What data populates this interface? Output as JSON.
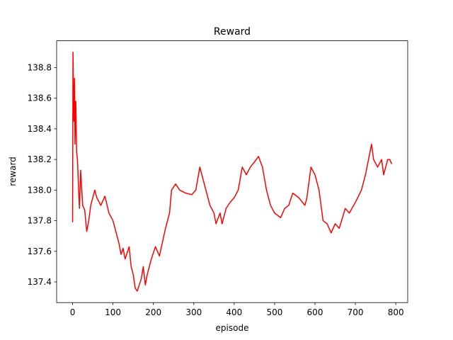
{
  "chart_data": {
    "type": "line",
    "title": "Reward",
    "x_label": "episode",
    "y_label": "reward",
    "x": [
      0,
      1,
      3,
      5,
      6,
      8,
      10,
      12,
      15,
      17,
      20,
      25,
      30,
      35,
      40,
      45,
      55,
      60,
      70,
      80,
      90,
      100,
      105,
      115,
      120,
      125,
      130,
      140,
      145,
      150,
      155,
      160,
      170,
      175,
      180,
      185,
      195,
      205,
      215,
      230,
      240,
      245,
      255,
      265,
      280,
      295,
      305,
      315,
      320,
      330,
      340,
      350,
      355,
      365,
      370,
      380,
      390,
      400,
      410,
      420,
      430,
      440,
      455,
      460,
      470,
      480,
      490,
      500,
      515,
      525,
      535,
      545,
      560,
      575,
      580,
      590,
      600,
      610,
      620,
      630,
      640,
      650,
      660,
      675,
      685,
      700,
      715,
      725,
      740,
      745,
      755,
      765,
      770,
      780,
      785,
      790
    ],
    "series": [
      {
        "name": "reward",
        "color": "#ff0000",
        "values": [
          137.79,
          138.9,
          138.45,
          138.73,
          138.3,
          138.58,
          138.25,
          138.2,
          138.0,
          137.88,
          138.13,
          137.9,
          137.87,
          137.73,
          137.8,
          137.9,
          138.0,
          137.95,
          137.9,
          137.96,
          137.85,
          137.8,
          137.75,
          137.65,
          137.58,
          137.62,
          137.55,
          137.63,
          137.5,
          137.45,
          137.36,
          137.34,
          137.42,
          137.5,
          137.38,
          137.45,
          137.55,
          137.63,
          137.57,
          137.75,
          137.85,
          138.0,
          138.04,
          138.0,
          137.98,
          137.97,
          138.0,
          138.15,
          138.1,
          138.0,
          137.9,
          137.85,
          137.78,
          137.85,
          137.78,
          137.88,
          137.92,
          137.95,
          138.0,
          138.15,
          138.1,
          138.15,
          138.2,
          138.22,
          138.15,
          138.0,
          137.9,
          137.85,
          137.82,
          137.88,
          137.9,
          137.98,
          137.95,
          137.9,
          137.95,
          138.15,
          138.1,
          138.0,
          137.8,
          137.78,
          137.72,
          137.78,
          137.75,
          137.88,
          137.85,
          137.92,
          138.0,
          138.1,
          138.3,
          138.2,
          138.15,
          138.2,
          138.1,
          138.2,
          138.2,
          138.17
        ]
      }
    ],
    "xlim": [
      -39.5,
      829.5
    ],
    "xticks": [
      0,
      100,
      200,
      300,
      400,
      500,
      600,
      700,
      800
    ],
    "ylim": [
      137.265,
      138.975
    ],
    "yticks": [
      137.4,
      137.6,
      137.8,
      {
        "value": 138,
        "label": "138.0"
      },
      138.2,
      138.4,
      138.6,
      138.8
    ]
  }
}
